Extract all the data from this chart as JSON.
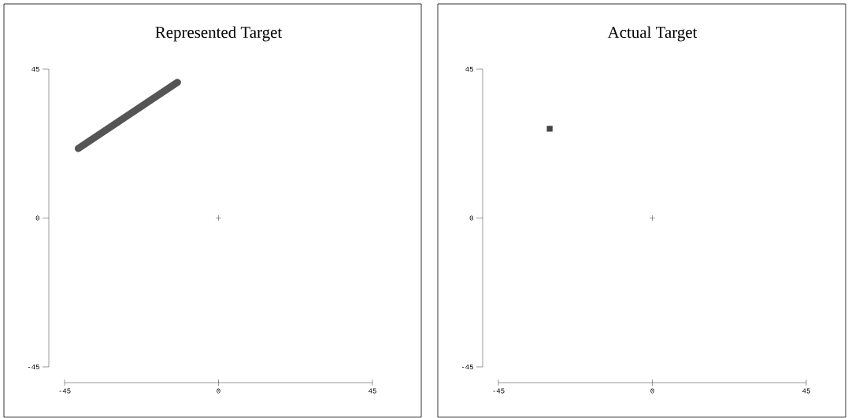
{
  "chart_data": [
    {
      "type": "scatter",
      "title": "Represented Target",
      "xlim": [
        -45,
        45
      ],
      "ylim": [
        -45,
        45
      ],
      "xticks": [
        -45,
        0,
        45
      ],
      "yticks": [
        -45,
        0,
        45
      ],
      "series": [
        {
          "type": "line",
          "color": "#555555",
          "x": [
            -41,
            -12
          ],
          "values": [
            21,
            41
          ]
        },
        {
          "type": "scatter",
          "marker": "cross",
          "color": "#000000",
          "x": [
            0
          ],
          "values": [
            0
          ]
        }
      ]
    },
    {
      "type": "scatter",
      "title": "Actual Target",
      "xlim": [
        -45,
        45
      ],
      "ylim": [
        -45,
        45
      ],
      "xticks": [
        -45,
        0,
        45
      ],
      "yticks": [
        -45,
        0,
        45
      ],
      "series": [
        {
          "type": "scatter",
          "marker": "square",
          "color": "#444444",
          "x": [
            -30
          ],
          "values": [
            27
          ]
        },
        {
          "type": "scatter",
          "marker": "cross",
          "color": "#000000",
          "x": [
            0
          ],
          "values": [
            0
          ]
        }
      ]
    }
  ]
}
